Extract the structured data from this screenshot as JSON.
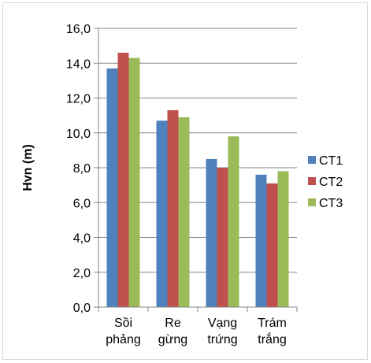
{
  "chart_data": {
    "type": "bar",
    "title": "",
    "xlabel": "",
    "ylabel": "Hvn (m)",
    "ylim": [
      0,
      16
    ],
    "ytick_step": 2,
    "ytick_labels": [
      "0,0",
      "2,0",
      "4,0",
      "6,0",
      "8,0",
      "10,0",
      "12,0",
      "14,0",
      "16,0"
    ],
    "grid": true,
    "legend_position": "right",
    "categories": [
      [
        "Sồi",
        "phảng"
      ],
      [
        "Re",
        "gừng"
      ],
      [
        "Vạng",
        "trứng"
      ],
      [
        "Trám",
        "trắng"
      ]
    ],
    "series": [
      {
        "name": "CT1",
        "color": "#4f81bd",
        "values": [
          13.7,
          10.7,
          8.5,
          7.6
        ]
      },
      {
        "name": "CT2",
        "color": "#c0504d",
        "values": [
          14.6,
          11.3,
          8.0,
          7.1
        ]
      },
      {
        "name": "CT3",
        "color": "#9bbb59",
        "values": [
          14.3,
          10.9,
          9.8,
          7.8
        ]
      }
    ]
  }
}
